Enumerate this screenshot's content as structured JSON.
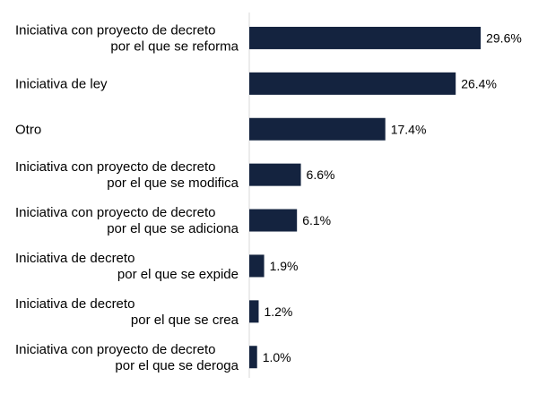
{
  "chart_data": {
    "type": "bar",
    "orientation": "horizontal",
    "categories": [
      [
        "Iniciativa con proyecto de decreto",
        "por el que se reforma"
      ],
      [
        "Iniciativa de ley"
      ],
      [
        "Otro"
      ],
      [
        "Iniciativa con proyecto de decreto",
        "por el que se modifica"
      ],
      [
        "Iniciativa con proyecto de decreto",
        "por el que se adiciona"
      ],
      [
        "Iniciativa de decreto",
        "por el que se expide"
      ],
      [
        "Iniciativa de decreto",
        "por el que se crea"
      ],
      [
        "Iniciativa con proyecto de decreto",
        "por el que se deroga"
      ]
    ],
    "values": [
      29.6,
      26.4,
      17.4,
      6.6,
      6.1,
      1.9,
      1.2,
      1.0
    ],
    "value_labels": [
      "29.6%",
      "26.4%",
      "17.4%",
      "6.6%",
      "6.1%",
      "1.9%",
      "1.2%",
      "1.0%"
    ],
    "xlim": [
      0,
      30
    ],
    "grid": false,
    "legend": "none",
    "colors": {
      "bar": "#14233f",
      "axis": "#d9d9d9",
      "text": "#000000"
    }
  }
}
